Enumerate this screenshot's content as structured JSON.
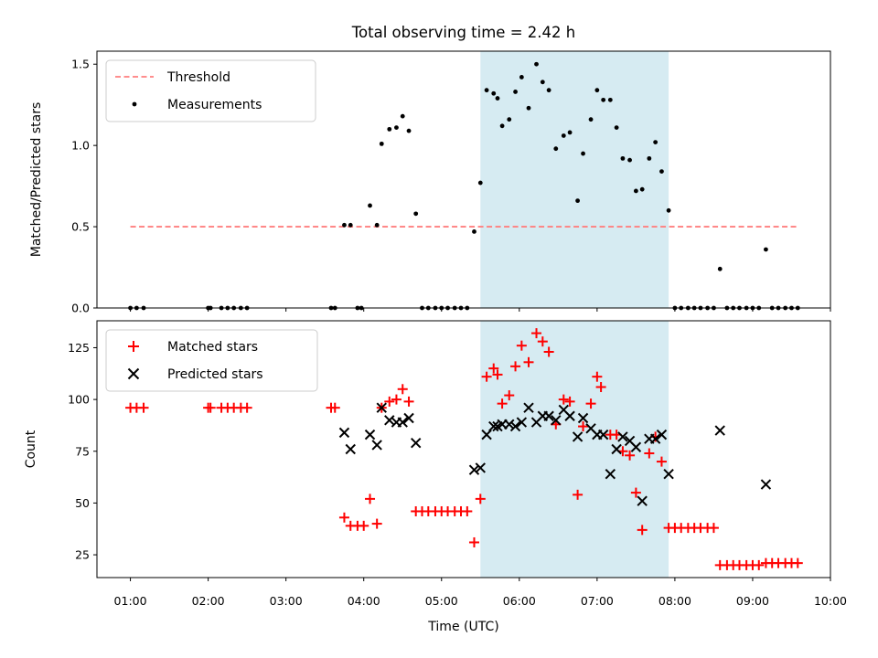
{
  "chart_data": {
    "title": "Total observing time = 2.42 h",
    "xlabel": "Time (UTC)",
    "x_ticks": [
      "01:00",
      "02:00",
      "03:00",
      "04:00",
      "05:00",
      "06:00",
      "07:00",
      "08:00",
      "09:00",
      "10:00"
    ],
    "xlim_hours": [
      0.57,
      10.0
    ],
    "highlight_span_hours": [
      5.5,
      7.92
    ],
    "highlight_color": "#add8e6",
    "panels": [
      {
        "type": "scatter",
        "ylabel": "Matched/Predicted stars",
        "ylim": [
          0,
          1.58
        ],
        "y_ticks": [
          0.0,
          0.5,
          1.0,
          1.5
        ],
        "y_tick_labels": [
          "0.0",
          "0.5",
          "1.0",
          "1.5"
        ],
        "legend_position": "upper-left",
        "threshold": {
          "name": "Threshold",
          "value": 0.5,
          "x_range_hours": [
            1.0,
            9.58
          ],
          "color": "#ff7f7f",
          "style": "dashed"
        },
        "series": [
          {
            "name": "Measurements",
            "marker": "dot",
            "color": "#000000",
            "points": [
              [
                1.0,
                0
              ],
              [
                1.08,
                0
              ],
              [
                1.17,
                0
              ],
              [
                2.0,
                0
              ],
              [
                2.03,
                0
              ],
              [
                2.17,
                0
              ],
              [
                2.25,
                0
              ],
              [
                2.33,
                0
              ],
              [
                2.42,
                0
              ],
              [
                2.5,
                0
              ],
              [
                3.58,
                0
              ],
              [
                3.63,
                0
              ],
              [
                3.75,
                0.51
              ],
              [
                3.83,
                0.51
              ],
              [
                3.92,
                0
              ],
              [
                3.97,
                0
              ],
              [
                4.08,
                0.63
              ],
              [
                4.17,
                0.51
              ],
              [
                4.23,
                1.01
              ],
              [
                4.33,
                1.1
              ],
              [
                4.42,
                1.11
              ],
              [
                4.5,
                1.18
              ],
              [
                4.58,
                1.09
              ],
              [
                4.67,
                0.58
              ],
              [
                4.75,
                0
              ],
              [
                4.83,
                0
              ],
              [
                4.92,
                0
              ],
              [
                5.0,
                0
              ],
              [
                5.08,
                0
              ],
              [
                5.17,
                0
              ],
              [
                5.25,
                0
              ],
              [
                5.33,
                0
              ],
              [
                5.42,
                0.47
              ],
              [
                5.5,
                0.77
              ],
              [
                5.58,
                1.34
              ],
              [
                5.67,
                1.32
              ],
              [
                5.72,
                1.29
              ],
              [
                5.78,
                1.12
              ],
              [
                5.87,
                1.16
              ],
              [
                5.95,
                1.33
              ],
              [
                6.03,
                1.42
              ],
              [
                6.12,
                1.23
              ],
              [
                6.22,
                1.5
              ],
              [
                6.3,
                1.39
              ],
              [
                6.38,
                1.34
              ],
              [
                6.47,
                0.98
              ],
              [
                6.57,
                1.06
              ],
              [
                6.65,
                1.08
              ],
              [
                6.75,
                0.66
              ],
              [
                6.82,
                0.95
              ],
              [
                6.92,
                1.16
              ],
              [
                7.0,
                1.34
              ],
              [
                7.08,
                1.28
              ],
              [
                7.17,
                1.28
              ],
              [
                7.25,
                1.11
              ],
              [
                7.33,
                0.92
              ],
              [
                7.42,
                0.91
              ],
              [
                7.5,
                0.72
              ],
              [
                7.58,
                0.73
              ],
              [
                7.67,
                0.92
              ],
              [
                7.75,
                1.02
              ],
              [
                7.83,
                0.84
              ],
              [
                7.92,
                0.6
              ],
              [
                8.0,
                0
              ],
              [
                8.08,
                0
              ],
              [
                8.17,
                0
              ],
              [
                8.25,
                0
              ],
              [
                8.33,
                0
              ],
              [
                8.42,
                0
              ],
              [
                8.5,
                0
              ],
              [
                8.58,
                0.24
              ],
              [
                8.67,
                0
              ],
              [
                8.75,
                0
              ],
              [
                8.83,
                0
              ],
              [
                8.92,
                0
              ],
              [
                9.0,
                0
              ],
              [
                9.08,
                0
              ],
              [
                9.17,
                0.36
              ],
              [
                9.25,
                0
              ],
              [
                9.33,
                0
              ],
              [
                9.42,
                0
              ],
              [
                9.5,
                0
              ],
              [
                9.58,
                0
              ]
            ]
          }
        ]
      },
      {
        "type": "scatter",
        "ylabel": "Count",
        "ylim": [
          14,
          138
        ],
        "y_ticks": [
          25,
          50,
          75,
          100,
          125
        ],
        "y_tick_labels": [
          "25",
          "50",
          "75",
          "100",
          "125"
        ],
        "legend_position": "upper-left",
        "series": [
          {
            "name": "Matched stars",
            "marker": "plus",
            "color": "#ff0000",
            "points": [
              [
                1.0,
                96
              ],
              [
                1.08,
                96
              ],
              [
                1.17,
                96
              ],
              [
                2.0,
                96
              ],
              [
                2.03,
                96
              ],
              [
                2.17,
                96
              ],
              [
                2.25,
                96
              ],
              [
                2.33,
                96
              ],
              [
                2.42,
                96
              ],
              [
                2.5,
                96
              ],
              [
                3.58,
                96
              ],
              [
                3.63,
                96
              ],
              [
                3.75,
                43
              ],
              [
                3.83,
                39
              ],
              [
                3.92,
                39
              ],
              [
                4.0,
                39
              ],
              [
                4.08,
                52
              ],
              [
                4.17,
                40
              ],
              [
                4.23,
                96
              ],
              [
                4.33,
                99
              ],
              [
                4.42,
                100
              ],
              [
                4.5,
                105
              ],
              [
                4.58,
                99
              ],
              [
                4.67,
                46
              ],
              [
                4.75,
                46
              ],
              [
                4.83,
                46
              ],
              [
                4.92,
                46
              ],
              [
                5.0,
                46
              ],
              [
                5.08,
                46
              ],
              [
                5.17,
                46
              ],
              [
                5.25,
                46
              ],
              [
                5.33,
                46
              ],
              [
                5.42,
                31
              ],
              [
                5.5,
                52
              ],
              [
                5.58,
                111
              ],
              [
                5.67,
                115
              ],
              [
                5.72,
                112
              ],
              [
                5.78,
                98
              ],
              [
                5.87,
                102
              ],
              [
                5.95,
                116
              ],
              [
                6.03,
                126
              ],
              [
                6.12,
                118
              ],
              [
                6.22,
                132
              ],
              [
                6.3,
                128
              ],
              [
                6.38,
                123
              ],
              [
                6.47,
                88
              ],
              [
                6.57,
                100
              ],
              [
                6.65,
                99
              ],
              [
                6.75,
                54
              ],
              [
                6.82,
                87
              ],
              [
                6.92,
                98
              ],
              [
                7.0,
                111
              ],
              [
                7.05,
                106
              ],
              [
                7.17,
                83
              ],
              [
                7.25,
                83
              ],
              [
                7.33,
                75
              ],
              [
                7.42,
                73
              ],
              [
                7.5,
                55
              ],
              [
                7.58,
                37
              ],
              [
                7.67,
                74
              ],
              [
                7.75,
                82
              ],
              [
                7.83,
                70
              ],
              [
                7.92,
                38
              ],
              [
                8.0,
                38
              ],
              [
                8.08,
                38
              ],
              [
                8.17,
                38
              ],
              [
                8.25,
                38
              ],
              [
                8.33,
                38
              ],
              [
                8.42,
                38
              ],
              [
                8.5,
                38
              ],
              [
                8.58,
                20
              ],
              [
                8.67,
                20
              ],
              [
                8.75,
                20
              ],
              [
                8.83,
                20
              ],
              [
                8.92,
                20
              ],
              [
                9.0,
                20
              ],
              [
                9.08,
                20
              ],
              [
                9.17,
                21
              ],
              [
                9.25,
                21
              ],
              [
                9.33,
                21
              ],
              [
                9.42,
                21
              ],
              [
                9.5,
                21
              ],
              [
                9.58,
                21
              ]
            ]
          },
          {
            "name": "Predicted stars",
            "marker": "x",
            "color": "#000000",
            "points": [
              [
                3.75,
                84
              ],
              [
                3.83,
                76
              ],
              [
                4.08,
                83
              ],
              [
                4.17,
                78
              ],
              [
                4.23,
                96
              ],
              [
                4.33,
                90
              ],
              [
                4.42,
                89
              ],
              [
                4.5,
                89
              ],
              [
                4.58,
                91
              ],
              [
                4.67,
                79
              ],
              [
                5.42,
                66
              ],
              [
                5.5,
                67
              ],
              [
                5.58,
                83
              ],
              [
                5.67,
                87
              ],
              [
                5.72,
                87
              ],
              [
                5.78,
                88
              ],
              [
                5.87,
                88
              ],
              [
                5.95,
                87
              ],
              [
                6.03,
                89
              ],
              [
                6.12,
                96
              ],
              [
                6.22,
                89
              ],
              [
                6.3,
                92
              ],
              [
                6.38,
                92
              ],
              [
                6.47,
                90
              ],
              [
                6.57,
                95
              ],
              [
                6.65,
                92
              ],
              [
                6.75,
                82
              ],
              [
                6.82,
                91
              ],
              [
                6.92,
                86
              ],
              [
                7.0,
                83
              ],
              [
                7.08,
                83
              ],
              [
                7.17,
                64
              ],
              [
                7.25,
                76
              ],
              [
                7.33,
                82
              ],
              [
                7.42,
                80
              ],
              [
                7.5,
                77
              ],
              [
                7.58,
                51
              ],
              [
                7.67,
                81
              ],
              [
                7.75,
                81
              ],
              [
                7.83,
                83
              ],
              [
                7.92,
                64
              ],
              [
                8.58,
                85
              ],
              [
                9.17,
                59
              ]
            ]
          }
        ]
      }
    ]
  }
}
